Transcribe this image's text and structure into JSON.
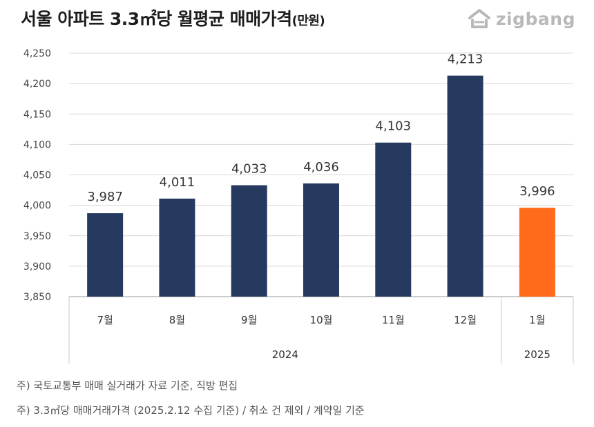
{
  "title": {
    "main": "서울 아파트 3.3㎡당 월평균 매매가격",
    "unit": "(만원)"
  },
  "logo": {
    "text": "zigbang",
    "icon": "zigbang-house-icon"
  },
  "colors": {
    "bar_default": "#253a5e",
    "bar_highlight": "#ff6b1a",
    "grid": "#d9d9d9",
    "text": "#333333"
  },
  "chart_data": {
    "type": "bar",
    "categories": [
      "7월",
      "8월",
      "9월",
      "10월",
      "11월",
      "12월",
      "1월"
    ],
    "values": [
      3987,
      4011,
      4033,
      4036,
      4103,
      4213,
      3996
    ],
    "value_labels": [
      "3,987",
      "4,011",
      "4,033",
      "4,036",
      "4,103",
      "4,213",
      "3,996"
    ],
    "highlight_index": 6,
    "year_groups": [
      {
        "label": "2024",
        "count": 6
      },
      {
        "label": "2025",
        "count": 1
      }
    ],
    "ylim": [
      3850,
      4250
    ],
    "yticks": [
      3850,
      3900,
      3950,
      4000,
      4050,
      4100,
      4150,
      4200,
      4250
    ],
    "ytick_labels": [
      "3,850",
      "3,900",
      "3,950",
      "4,000",
      "4,050",
      "4,100",
      "4,150",
      "4,200",
      "4,250"
    ],
    "grid": true,
    "legend": "none"
  },
  "notes": {
    "line1": "주) 국토교통부 매매 실거래가 자료 기준, 직방 편집",
    "line2": "주) 3.3㎡당 매매거래가격 (2025.2.12 수집 기준) / 취소 건 제외 / 계약일 기준"
  }
}
